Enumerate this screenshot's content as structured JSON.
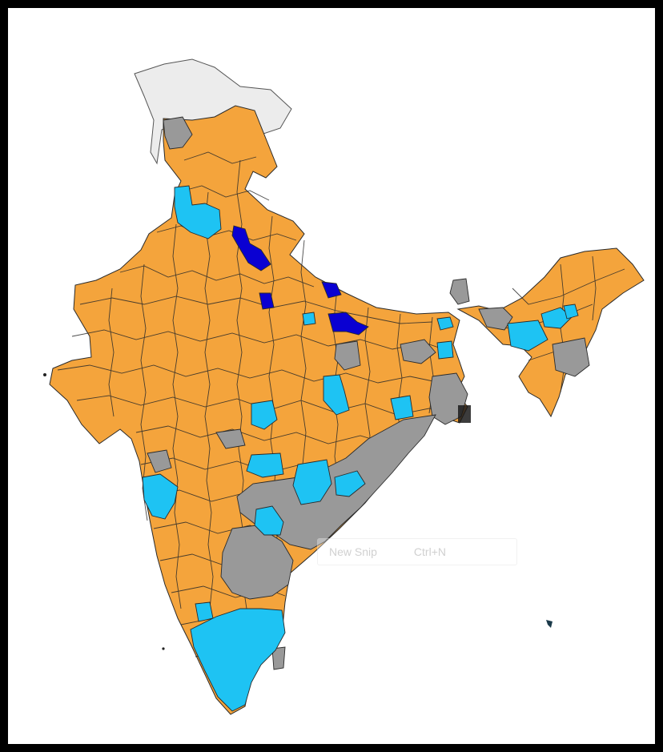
{
  "overlay": {
    "snip_label": "New Snip",
    "snip_shortcut": "Ctrl+N"
  },
  "colors": {
    "background_frame": "#000000",
    "canvas": "#ffffff",
    "orange_party": "#F4A43C",
    "light_blue_party": "#1EC3F3",
    "dark_blue_party": "#0A00D2",
    "grey_other": "#999999",
    "disputed_territory": "#ECECEC",
    "district_border": "#2a2a2a"
  },
  "legend_items": []
}
